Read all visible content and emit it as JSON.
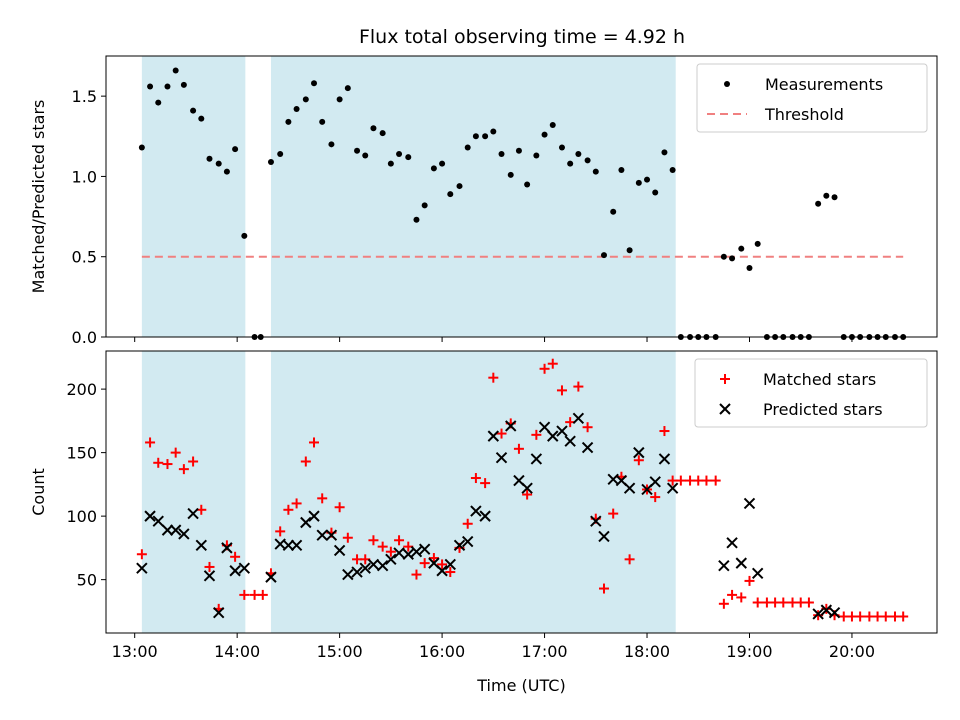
{
  "figure_title": "Flux total observing time = 4.92 h",
  "chart_data": [
    {
      "type": "scatter",
      "panel": "top",
      "title": "Flux total observing time = 4.92 h",
      "xlabel": "",
      "ylabel": "Matched/Predicted stars",
      "xlim": [
        12.72,
        20.83
      ],
      "ylim": [
        0,
        1.75
      ],
      "x_ticks": [
        13,
        14,
        15,
        16,
        17,
        18,
        19,
        20
      ],
      "x_tick_labels": [
        "13:00",
        "14:00",
        "15:00",
        "16:00",
        "17:00",
        "18:00",
        "19:00",
        "20:00"
      ],
      "y_ticks": [
        0,
        0.5,
        1.0,
        1.5
      ],
      "y_tick_labels": [
        "0.0",
        "0.5",
        "1.0",
        "1.5"
      ],
      "shaded_intervals": [
        [
          13.07,
          14.08
        ],
        [
          14.33,
          18.28
        ]
      ],
      "shade_color": "#add8e6",
      "threshold": {
        "name": "Threshold",
        "value": 0.5,
        "x_range": [
          13.07,
          20.5
        ],
        "color": "#f08080"
      },
      "legend": {
        "position": "top-right",
        "entries": [
          "Measurements",
          "Threshold"
        ]
      },
      "series": [
        {
          "name": "Measurements",
          "marker": "dot",
          "color": "#000000",
          "points": [
            [
              13.07,
              1.18
            ],
            [
              13.15,
              1.56
            ],
            [
              13.23,
              1.46
            ],
            [
              13.32,
              1.56
            ],
            [
              13.4,
              1.66
            ],
            [
              13.48,
              1.57
            ],
            [
              13.57,
              1.41
            ],
            [
              13.65,
              1.36
            ],
            [
              13.73,
              1.11
            ],
            [
              13.82,
              1.08
            ],
            [
              13.9,
              1.03
            ],
            [
              13.98,
              1.17
            ],
            [
              14.07,
              0.63
            ],
            [
              14.17,
              0.0
            ],
            [
              14.23,
              0.0
            ],
            [
              14.33,
              1.09
            ],
            [
              14.42,
              1.14
            ],
            [
              14.5,
              1.34
            ],
            [
              14.58,
              1.42
            ],
            [
              14.67,
              1.48
            ],
            [
              14.75,
              1.58
            ],
            [
              14.83,
              1.34
            ],
            [
              14.92,
              1.2
            ],
            [
              15.0,
              1.48
            ],
            [
              15.08,
              1.55
            ],
            [
              15.17,
              1.16
            ],
            [
              15.25,
              1.13
            ],
            [
              15.33,
              1.3
            ],
            [
              15.42,
              1.27
            ],
            [
              15.5,
              1.08
            ],
            [
              15.58,
              1.14
            ],
            [
              15.67,
              1.12
            ],
            [
              15.75,
              0.73
            ],
            [
              15.83,
              0.82
            ],
            [
              15.92,
              1.05
            ],
            [
              16.0,
              1.08
            ],
            [
              16.08,
              0.89
            ],
            [
              16.17,
              0.94
            ],
            [
              16.25,
              1.18
            ],
            [
              16.33,
              1.25
            ],
            [
              16.42,
              1.25
            ],
            [
              16.5,
              1.28
            ],
            [
              16.58,
              1.14
            ],
            [
              16.67,
              1.01
            ],
            [
              16.75,
              1.16
            ],
            [
              16.83,
              0.95
            ],
            [
              16.92,
              1.13
            ],
            [
              17.0,
              1.26
            ],
            [
              17.08,
              1.32
            ],
            [
              17.17,
              1.18
            ],
            [
              17.25,
              1.08
            ],
            [
              17.33,
              1.14
            ],
            [
              17.42,
              1.1
            ],
            [
              17.5,
              1.03
            ],
            [
              17.58,
              0.51
            ],
            [
              17.67,
              0.78
            ],
            [
              17.75,
              1.04
            ],
            [
              17.83,
              0.54
            ],
            [
              17.92,
              0.96
            ],
            [
              18.0,
              0.98
            ],
            [
              18.08,
              0.9
            ],
            [
              18.17,
              1.15
            ],
            [
              18.25,
              1.04
            ],
            [
              18.33,
              0.0
            ],
            [
              18.42,
              0.0
            ],
            [
              18.5,
              0.0
            ],
            [
              18.58,
              0.0
            ],
            [
              18.67,
              0.0
            ],
            [
              18.75,
              0.5
            ],
            [
              18.83,
              0.49
            ],
            [
              18.92,
              0.55
            ],
            [
              19.0,
              0.43
            ],
            [
              19.08,
              0.58
            ],
            [
              19.17,
              0.0
            ],
            [
              19.25,
              0.0
            ],
            [
              19.33,
              0.0
            ],
            [
              19.42,
              0.0
            ],
            [
              19.5,
              0.0
            ],
            [
              19.58,
              0.0
            ],
            [
              19.67,
              0.83
            ],
            [
              19.75,
              0.88
            ],
            [
              19.83,
              0.87
            ],
            [
              19.92,
              0.0
            ],
            [
              20.0,
              0.0
            ],
            [
              20.08,
              0.0
            ],
            [
              20.17,
              0.0
            ],
            [
              20.25,
              0.0
            ],
            [
              20.33,
              0.0
            ],
            [
              20.42,
              0.0
            ],
            [
              20.5,
              0.0
            ]
          ]
        }
      ]
    },
    {
      "type": "scatter",
      "panel": "bottom",
      "title": "",
      "xlabel": "Time (UTC)",
      "ylabel": "Count",
      "xlim": [
        12.72,
        20.83
      ],
      "ylim": [
        8,
        230
      ],
      "x_ticks": [
        13,
        14,
        15,
        16,
        17,
        18,
        19,
        20
      ],
      "x_tick_labels": [
        "13:00",
        "14:00",
        "15:00",
        "16:00",
        "17:00",
        "18:00",
        "19:00",
        "20:00"
      ],
      "y_ticks": [
        50,
        100,
        150,
        200
      ],
      "y_tick_labels": [
        "50",
        "100",
        "150",
        "200"
      ],
      "shaded_intervals": [
        [
          13.07,
          14.08
        ],
        [
          14.33,
          18.28
        ]
      ],
      "shade_color": "#add8e6",
      "legend": {
        "position": "top-right",
        "entries": [
          "Matched stars",
          "Predicted stars"
        ]
      },
      "series": [
        {
          "name": "Matched stars",
          "marker": "plus",
          "color": "#ff0000",
          "points": [
            [
              13.07,
              70
            ],
            [
              13.15,
              158
            ],
            [
              13.23,
              142
            ],
            [
              13.32,
              141
            ],
            [
              13.4,
              150
            ],
            [
              13.48,
              137
            ],
            [
              13.57,
              143
            ],
            [
              13.65,
              105
            ],
            [
              13.73,
              60
            ],
            [
              13.82,
              27
            ],
            [
              13.9,
              77
            ],
            [
              13.98,
              68
            ],
            [
              14.07,
              38
            ],
            [
              14.17,
              38
            ],
            [
              14.25,
              38
            ],
            [
              14.33,
              55
            ],
            [
              14.42,
              88
            ],
            [
              14.5,
              105
            ],
            [
              14.58,
              110
            ],
            [
              14.67,
              143
            ],
            [
              14.75,
              158
            ],
            [
              14.83,
              114
            ],
            [
              14.92,
              87
            ],
            [
              15.0,
              107
            ],
            [
              15.08,
              83
            ],
            [
              15.17,
              66
            ],
            [
              15.25,
              66
            ],
            [
              15.33,
              81
            ],
            [
              15.42,
              76
            ],
            [
              15.5,
              72
            ],
            [
              15.58,
              81
            ],
            [
              15.67,
              76
            ],
            [
              15.75,
              54
            ],
            [
              15.83,
              63
            ],
            [
              15.92,
              67
            ],
            [
              16.0,
              62
            ],
            [
              16.08,
              56
            ],
            [
              16.17,
              75
            ],
            [
              16.25,
              94
            ],
            [
              16.33,
              130
            ],
            [
              16.42,
              126
            ],
            [
              16.5,
              209
            ],
            [
              16.58,
              165
            ],
            [
              16.67,
              173
            ],
            [
              16.75,
              153
            ],
            [
              16.83,
              117
            ],
            [
              16.92,
              164
            ],
            [
              17.0,
              216
            ],
            [
              17.08,
              220
            ],
            [
              17.17,
              199
            ],
            [
              17.25,
              174
            ],
            [
              17.33,
              202
            ],
            [
              17.42,
              170
            ],
            [
              17.5,
              98
            ],
            [
              17.58,
              43
            ],
            [
              17.67,
              102
            ],
            [
              17.75,
              131
            ],
            [
              17.83,
              66
            ],
            [
              17.92,
              144
            ],
            [
              18.0,
              121
            ],
            [
              18.08,
              115
            ],
            [
              18.17,
              167
            ],
            [
              18.25,
              128
            ],
            [
              18.33,
              128
            ],
            [
              18.42,
              128
            ],
            [
              18.5,
              128
            ],
            [
              18.58,
              128
            ],
            [
              18.67,
              128
            ],
            [
              18.75,
              31
            ],
            [
              18.83,
              38
            ],
            [
              18.92,
              36
            ],
            [
              19.0,
              49
            ],
            [
              19.08,
              32
            ],
            [
              19.17,
              32
            ],
            [
              19.25,
              32
            ],
            [
              19.33,
              32
            ],
            [
              19.42,
              32
            ],
            [
              19.5,
              32
            ],
            [
              19.58,
              32
            ],
            [
              19.67,
              22
            ],
            [
              19.75,
              27
            ],
            [
              19.83,
              22
            ],
            [
              19.92,
              21
            ],
            [
              20.0,
              21
            ],
            [
              20.08,
              21
            ],
            [
              20.17,
              21
            ],
            [
              20.25,
              21
            ],
            [
              20.33,
              21
            ],
            [
              20.42,
              21
            ],
            [
              20.5,
              21
            ]
          ]
        },
        {
          "name": "Predicted stars",
          "marker": "x",
          "color": "#000000",
          "points": [
            [
              13.07,
              59
            ],
            [
              13.15,
              100
            ],
            [
              13.23,
              96
            ],
            [
              13.32,
              89
            ],
            [
              13.4,
              89
            ],
            [
              13.48,
              86
            ],
            [
              13.57,
              102
            ],
            [
              13.65,
              77
            ],
            [
              13.73,
              53
            ],
            [
              13.82,
              24
            ],
            [
              13.9,
              75
            ],
            [
              13.98,
              57
            ],
            [
              14.07,
              59
            ],
            [
              14.33,
              52
            ],
            [
              14.42,
              78
            ],
            [
              14.5,
              77
            ],
            [
              14.58,
              77
            ],
            [
              14.67,
              95
            ],
            [
              14.75,
              100
            ],
            [
              14.83,
              85
            ],
            [
              14.92,
              85
            ],
            [
              15.0,
              73
            ],
            [
              15.08,
              54
            ],
            [
              15.17,
              56
            ],
            [
              15.25,
              59
            ],
            [
              15.33,
              62
            ],
            [
              15.42,
              61
            ],
            [
              15.5,
              66
            ],
            [
              15.58,
              71
            ],
            [
              15.67,
              70
            ],
            [
              15.75,
              72
            ],
            [
              15.83,
              74
            ],
            [
              15.92,
              63
            ],
            [
              16.0,
              57
            ],
            [
              16.08,
              62
            ],
            [
              16.17,
              77
            ],
            [
              16.25,
              80
            ],
            [
              16.33,
              104
            ],
            [
              16.42,
              100
            ],
            [
              16.5,
              163
            ],
            [
              16.58,
              146
            ],
            [
              16.67,
              171
            ],
            [
              16.75,
              128
            ],
            [
              16.83,
              122
            ],
            [
              16.92,
              145
            ],
            [
              17.0,
              170
            ],
            [
              17.08,
              163
            ],
            [
              17.17,
              167
            ],
            [
              17.25,
              159
            ],
            [
              17.33,
              177
            ],
            [
              17.42,
              154
            ],
            [
              17.5,
              96
            ],
            [
              17.58,
              84
            ],
            [
              17.67,
              129
            ],
            [
              17.75,
              128
            ],
            [
              17.83,
              122
            ],
            [
              17.92,
              150
            ],
            [
              18.0,
              121
            ],
            [
              18.08,
              127
            ],
            [
              18.17,
              145
            ],
            [
              18.25,
              122
            ],
            [
              18.75,
              61
            ],
            [
              18.83,
              79
            ],
            [
              18.92,
              63
            ],
            [
              19.0,
              110
            ],
            [
              19.08,
              55
            ],
            [
              19.67,
              23
            ],
            [
              19.75,
              26
            ],
            [
              19.83,
              24
            ]
          ]
        }
      ]
    }
  ]
}
